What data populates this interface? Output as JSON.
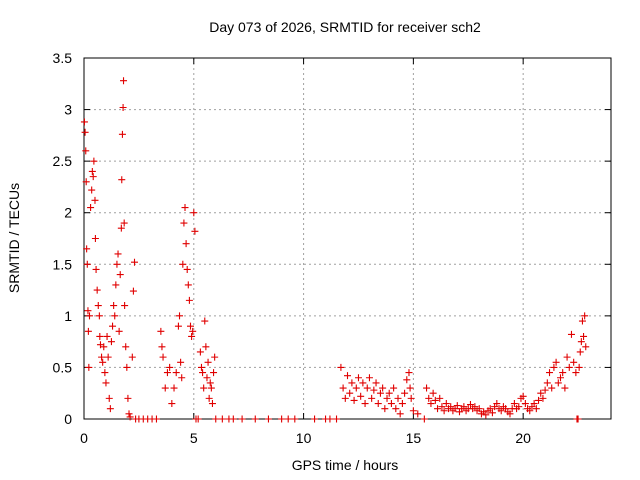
{
  "chart_data": {
    "type": "scatter",
    "title": "Day 073 of 2026, SRMTID for receiver sch2",
    "xlabel": "GPS time / hours",
    "ylabel": "SRMTID / TECUs",
    "xlim": [
      0,
      24
    ],
    "ylim": [
      0,
      3.5
    ],
    "xticks": [
      0,
      5,
      10,
      15,
      20
    ],
    "xtick_labels": [
      "0",
      "5",
      "10",
      "15",
      "20"
    ],
    "yticks": [
      0,
      0.5,
      1,
      1.5,
      2,
      2.5,
      3,
      3.5
    ],
    "ytick_labels": [
      "0",
      "0.5",
      "1",
      "1.5",
      "2",
      "2.5",
      "3",
      "3.5"
    ],
    "grid": true,
    "marker": "+",
    "series": [
      {
        "name": "SRMTID",
        "color": "#e00000",
        "points": [
          [
            0.02,
            2.88
          ],
          [
            0.05,
            2.78
          ],
          [
            0.08,
            2.6
          ],
          [
            0.1,
            2.3
          ],
          [
            0.12,
            1.65
          ],
          [
            0.15,
            1.5
          ],
          [
            0.18,
            1.05
          ],
          [
            0.2,
            0.85
          ],
          [
            0.22,
            0.5
          ],
          [
            0.25,
            1.0
          ],
          [
            0.3,
            2.05
          ],
          [
            0.35,
            2.22
          ],
          [
            0.38,
            2.4
          ],
          [
            0.42,
            2.35
          ],
          [
            0.45,
            2.5
          ],
          [
            0.5,
            2.12
          ],
          [
            0.52,
            1.75
          ],
          [
            0.55,
            1.45
          ],
          [
            0.6,
            1.25
          ],
          [
            0.65,
            1.1
          ],
          [
            0.7,
            1.0
          ],
          [
            0.72,
            0.8
          ],
          [
            0.75,
            0.72
          ],
          [
            0.8,
            0.6
          ],
          [
            0.85,
            0.55
          ],
          [
            0.9,
            0.7
          ],
          [
            0.95,
            0.45
          ],
          [
            1.0,
            0.35
          ],
          [
            1.05,
            0.8
          ],
          [
            1.1,
            0.6
          ],
          [
            1.15,
            0.2
          ],
          [
            1.2,
            0.1
          ],
          [
            1.25,
            0.75
          ],
          [
            1.3,
            0.9
          ],
          [
            1.35,
            1.1
          ],
          [
            1.4,
            1.0
          ],
          [
            1.45,
            1.3
          ],
          [
            1.5,
            1.5
          ],
          [
            1.55,
            1.6
          ],
          [
            1.6,
            0.85
          ],
          [
            1.65,
            1.4
          ],
          [
            1.7,
            1.85
          ],
          [
            1.72,
            2.32
          ],
          [
            1.75,
            2.76
          ],
          [
            1.78,
            3.02
          ],
          [
            1.8,
            3.28
          ],
          [
            1.83,
            1.9
          ],
          [
            1.85,
            1.1
          ],
          [
            1.9,
            0.7
          ],
          [
            1.95,
            0.5
          ],
          [
            2.0,
            0.2
          ],
          [
            2.05,
            0.05
          ],
          [
            2.1,
            0.02
          ],
          [
            2.2,
            0.6
          ],
          [
            2.25,
            1.24
          ],
          [
            2.3,
            1.52
          ],
          [
            2.35,
            0.0
          ],
          [
            2.5,
            0.0
          ],
          [
            2.7,
            0.0
          ],
          [
            2.9,
            0.0
          ],
          [
            3.1,
            0.0
          ],
          [
            3.3,
            0.0
          ],
          [
            3.5,
            0.85
          ],
          [
            3.55,
            0.7
          ],
          [
            3.6,
            0.6
          ],
          [
            3.7,
            0.3
          ],
          [
            3.8,
            0.45
          ],
          [
            3.9,
            0.5
          ],
          [
            4.0,
            0.15
          ],
          [
            4.1,
            0.3
          ],
          [
            4.2,
            0.45
          ],
          [
            4.3,
            0.9
          ],
          [
            4.35,
            1.0
          ],
          [
            4.4,
            0.55
          ],
          [
            4.45,
            0.4
          ],
          [
            4.5,
            1.5
          ],
          [
            4.55,
            1.9
          ],
          [
            4.6,
            2.05
          ],
          [
            4.65,
            1.7
          ],
          [
            4.7,
            1.45
          ],
          [
            4.75,
            1.3
          ],
          [
            4.8,
            1.15
          ],
          [
            4.85,
            0.9
          ],
          [
            4.9,
            0.8
          ],
          [
            4.95,
            0.85
          ],
          [
            5.0,
            2.0
          ],
          [
            5.05,
            1.82
          ],
          [
            5.1,
            0.0
          ],
          [
            5.2,
            0.0
          ],
          [
            5.3,
            0.65
          ],
          [
            5.35,
            0.5
          ],
          [
            5.4,
            0.45
          ],
          [
            5.45,
            0.3
          ],
          [
            5.5,
            0.95
          ],
          [
            5.55,
            0.7
          ],
          [
            5.6,
            0.4
          ],
          [
            5.65,
            0.55
          ],
          [
            5.7,
            0.2
          ],
          [
            5.75,
            0.35
          ],
          [
            5.8,
            0.3
          ],
          [
            5.85,
            0.15
          ],
          [
            5.9,
            0.45
          ],
          [
            5.95,
            0.6
          ],
          [
            6.0,
            0.0
          ],
          [
            6.3,
            0.0
          ],
          [
            6.6,
            0.0
          ],
          [
            6.8,
            0.0
          ],
          [
            7.2,
            0.0
          ],
          [
            7.8,
            0.0
          ],
          [
            8.4,
            0.0
          ],
          [
            9.0,
            0.0
          ],
          [
            9.3,
            0.0
          ],
          [
            9.6,
            0.0
          ],
          [
            10.5,
            0.0
          ],
          [
            11.0,
            0.0
          ],
          [
            11.2,
            0.0
          ],
          [
            11.5,
            0.0
          ],
          [
            11.7,
            0.5
          ],
          [
            11.8,
            0.3
          ],
          [
            11.9,
            0.2
          ],
          [
            12.0,
            0.42
          ],
          [
            12.1,
            0.25
          ],
          [
            12.2,
            0.35
          ],
          [
            12.3,
            0.18
          ],
          [
            12.4,
            0.3
          ],
          [
            12.5,
            0.4
          ],
          [
            12.6,
            0.22
          ],
          [
            12.7,
            0.35
          ],
          [
            12.8,
            0.15
          ],
          [
            12.9,
            0.3
          ],
          [
            13.0,
            0.4
          ],
          [
            13.1,
            0.2
          ],
          [
            13.2,
            0.28
          ],
          [
            13.3,
            0.35
          ],
          [
            13.4,
            0.15
          ],
          [
            13.5,
            0.25
          ],
          [
            13.6,
            0.3
          ],
          [
            13.7,
            0.1
          ],
          [
            13.8,
            0.2
          ],
          [
            13.9,
            0.25
          ],
          [
            14.0,
            0.15
          ],
          [
            14.1,
            0.3
          ],
          [
            14.2,
            0.1
          ],
          [
            14.3,
            0.2
          ],
          [
            14.4,
            0.05
          ],
          [
            14.5,
            0.15
          ],
          [
            14.6,
            0.25
          ],
          [
            14.7,
            0.38
          ],
          [
            14.8,
            0.45
          ],
          [
            14.85,
            0.3
          ],
          [
            14.9,
            0.2
          ],
          [
            15.0,
            0.08
          ],
          [
            15.2,
            0.05
          ],
          [
            15.5,
            0.0
          ],
          [
            15.6,
            0.3
          ],
          [
            15.7,
            0.2
          ],
          [
            15.8,
            0.15
          ],
          [
            15.9,
            0.25
          ],
          [
            16.0,
            0.18
          ],
          [
            16.1,
            0.1
          ],
          [
            16.2,
            0.2
          ],
          [
            16.3,
            0.12
          ],
          [
            16.4,
            0.08
          ],
          [
            16.5,
            0.15
          ],
          [
            16.6,
            0.1
          ],
          [
            16.7,
            0.12
          ],
          [
            16.8,
            0.08
          ],
          [
            16.9,
            0.1
          ],
          [
            17.0,
            0.13
          ],
          [
            17.1,
            0.07
          ],
          [
            17.2,
            0.1
          ],
          [
            17.3,
            0.12
          ],
          [
            17.4,
            0.08
          ],
          [
            17.5,
            0.1
          ],
          [
            17.6,
            0.14
          ],
          [
            17.7,
            0.1
          ],
          [
            17.8,
            0.12
          ],
          [
            17.9,
            0.08
          ],
          [
            18.0,
            0.1
          ],
          [
            18.1,
            0.05
          ],
          [
            18.2,
            0.07
          ],
          [
            18.3,
            0.04
          ],
          [
            18.4,
            0.08
          ],
          [
            18.5,
            0.1
          ],
          [
            18.6,
            0.06
          ],
          [
            18.7,
            0.12
          ],
          [
            18.8,
            0.15
          ],
          [
            18.9,
            0.1
          ],
          [
            19.0,
            0.08
          ],
          [
            19.1,
            0.12
          ],
          [
            19.2,
            0.1
          ],
          [
            19.3,
            0.07
          ],
          [
            19.4,
            0.05
          ],
          [
            19.5,
            0.1
          ],
          [
            19.6,
            0.15
          ],
          [
            19.7,
            0.1
          ],
          [
            19.8,
            0.12
          ],
          [
            19.9,
            0.2
          ],
          [
            20.0,
            0.22
          ],
          [
            20.1,
            0.15
          ],
          [
            20.2,
            0.1
          ],
          [
            20.3,
            0.08
          ],
          [
            20.4,
            0.12
          ],
          [
            20.5,
            0.15
          ],
          [
            20.6,
            0.1
          ],
          [
            20.7,
            0.18
          ],
          [
            20.8,
            0.25
          ],
          [
            20.9,
            0.2
          ],
          [
            21.0,
            0.28
          ],
          [
            21.1,
            0.35
          ],
          [
            21.2,
            0.45
          ],
          [
            21.3,
            0.3
          ],
          [
            21.4,
            0.5
          ],
          [
            21.5,
            0.55
          ],
          [
            21.6,
            0.35
          ],
          [
            21.7,
            0.4
          ],
          [
            21.8,
            0.45
          ],
          [
            21.9,
            0.3
          ],
          [
            22.0,
            0.6
          ],
          [
            22.1,
            0.5
          ],
          [
            22.2,
            0.82
          ],
          [
            22.3,
            0.55
          ],
          [
            22.4,
            0.45
          ],
          [
            22.45,
            0.0
          ],
          [
            22.5,
            0.0
          ],
          [
            22.55,
            0.5
          ],
          [
            22.6,
            0.65
          ],
          [
            22.65,
            0.75
          ],
          [
            22.7,
            0.95
          ],
          [
            22.75,
            0.8
          ],
          [
            22.8,
            1.0
          ],
          [
            22.85,
            0.7
          ]
        ]
      }
    ]
  }
}
